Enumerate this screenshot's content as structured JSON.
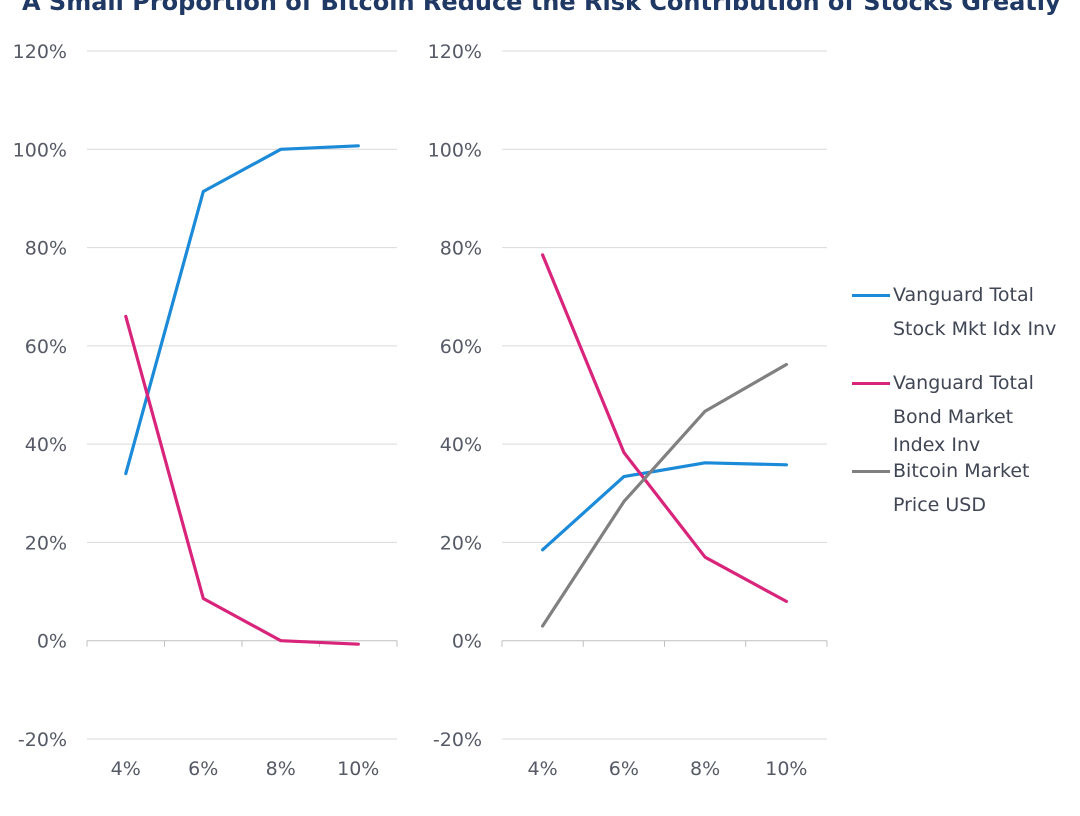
{
  "title": "A Small Proportion of Bitcoin Reduce the Risk Contribution of Stocks Greatly",
  "colors": {
    "stock": "#1b8ad8",
    "bond": "#d9247b",
    "bitcoin": "#808080"
  },
  "chart_data": [
    {
      "type": "line",
      "categories": [
        "4%",
        "6%",
        "8%",
        "10%"
      ],
      "y_ticks": [
        "120%",
        "100%",
        "80%",
        "60%",
        "40%",
        "20%",
        "0%",
        "-20%"
      ],
      "ylim": [
        -20,
        120
      ],
      "grid": true,
      "series": [
        {
          "name": "Vanguard Total Stock Mkt Idx Inv",
          "color_key": "stock",
          "values": [
            34,
            91.4,
            100,
            100.7
          ]
        },
        {
          "name": "Vanguard Total Bond Market Index Inv",
          "color_key": "bond",
          "values": [
            66,
            8.6,
            0,
            -0.7
          ]
        }
      ]
    },
    {
      "type": "line",
      "categories": [
        "4%",
        "6%",
        "8%",
        "10%"
      ],
      "y_ticks": [
        "120%",
        "100%",
        "80%",
        "60%",
        "40%",
        "20%",
        "0%",
        "-20%"
      ],
      "ylim": [
        -20,
        120
      ],
      "grid": true,
      "series": [
        {
          "name": "Vanguard Total Stock Mkt Idx Inv",
          "color_key": "stock",
          "values": [
            18.5,
            33.4,
            36.2,
            35.8
          ]
        },
        {
          "name": "Vanguard Total Bond Market Index Inv",
          "color_key": "bond",
          "values": [
            78.5,
            38.3,
            17,
            8
          ]
        },
        {
          "name": "Bitcoin Market Price USD",
          "color_key": "bitcoin",
          "values": [
            3,
            28.3,
            46.7,
            56.2
          ]
        }
      ]
    }
  ],
  "legend": {
    "placement": "right",
    "items": [
      {
        "color_key": "stock",
        "lines": [
          "Vanguard Total",
          "Stock Mkt Idx Inv"
        ]
      },
      {
        "color_key": "bond",
        "lines": [
          "Vanguard Total",
          "Bond Market",
          "Index Inv"
        ]
      },
      {
        "color_key": "bitcoin",
        "lines": [
          "Bitcoin Market",
          "Price USD"
        ]
      }
    ]
  }
}
